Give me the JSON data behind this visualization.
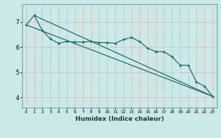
{
  "xlabel": "Humidex (Indice chaleur)",
  "bg_color": "#cce8e8",
  "line_color": "#1a6b6b",
  "grid_color": "#aacfcf",
  "grid_color_minor": "#f0c0c0",
  "xlim": [
    -0.5,
    23.5
  ],
  "ylim": [
    3.6,
    7.7
  ],
  "xticks": [
    0,
    1,
    2,
    3,
    4,
    5,
    6,
    7,
    8,
    9,
    10,
    11,
    12,
    13,
    14,
    15,
    16,
    17,
    18,
    19,
    20,
    21,
    22,
    23
  ],
  "yticks": [
    4,
    5,
    6,
    7
  ],
  "line1_x": [
    0,
    1,
    2,
    3,
    4,
    5,
    6,
    7,
    8,
    9,
    10,
    11,
    12,
    13,
    14,
    15,
    16,
    17,
    18,
    19,
    20,
    21,
    22,
    23
  ],
  "line1_y": [
    6.88,
    7.25,
    6.65,
    6.32,
    6.15,
    6.22,
    6.2,
    6.2,
    6.22,
    6.18,
    6.18,
    6.15,
    6.3,
    6.38,
    6.22,
    5.95,
    5.82,
    5.82,
    5.62,
    5.28,
    5.28,
    4.62,
    4.45,
    4.05
  ],
  "line2_x": [
    0,
    23
  ],
  "line2_y": [
    6.88,
    4.05
  ],
  "line3_x": [
    1,
    23
  ],
  "line3_y": [
    7.25,
    4.05
  ]
}
